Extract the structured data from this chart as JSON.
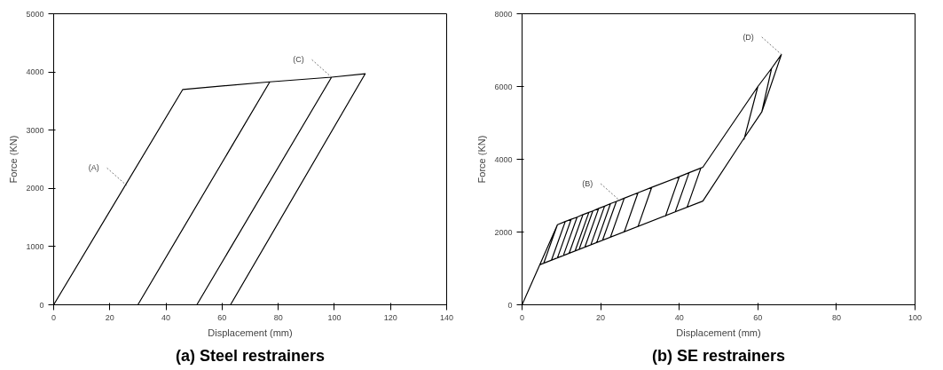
{
  "chart_data": [
    {
      "type": "line",
      "title": "(a) Steel restrainers",
      "xlabel": "Displacement (mm)",
      "ylabel": "Force (KN)",
      "xlim": [
        0,
        140
      ],
      "xticks": [
        0,
        20,
        40,
        60,
        80,
        100,
        120,
        140
      ],
      "ylim": [
        0,
        5000
      ],
      "yticks": [
        0,
        1000,
        2000,
        3000,
        4000,
        5000
      ],
      "grid": false,
      "marker": "none",
      "line_style": "solid",
      "series": [
        {
          "color": "#000000",
          "x": [
            0,
            46,
            77,
            30,
            77,
            99,
            51,
            99,
            111,
            63
          ],
          "values": [
            0,
            3700,
            3830,
            0,
            3830,
            3910,
            0,
            3910,
            3970,
            0
          ]
        }
      ],
      "annotations": [
        {
          "text": "(A)",
          "x": 26,
          "y": 2050
        },
        {
          "text": "(C)",
          "x": 99,
          "y": 3910
        }
      ]
    },
    {
      "type": "line",
      "title": "(b) SE restrainers",
      "xlabel": "Displacement (mm)",
      "ylabel": "Force (KN)",
      "xlim": [
        0,
        100
      ],
      "xticks": [
        0,
        20,
        40,
        60,
        80,
        100
      ],
      "ylim": [
        0,
        8000
      ],
      "yticks": [
        0,
        2000,
        4000,
        6000,
        8000
      ],
      "grid": false,
      "marker": "none",
      "line_style": "solid",
      "series": [
        {
          "color": "#000000",
          "x": [
            0,
            4.5,
            9,
            5.5,
            9,
            11,
            7.5,
            11,
            12.5,
            9,
            12.5,
            14,
            10.5,
            14,
            15.5,
            12,
            15.5,
            17,
            13.5,
            17,
            18,
            14.5,
            18,
            19.5,
            16,
            19.5,
            21,
            17.5,
            21,
            22.5,
            19,
            22.5,
            24,
            20.5,
            24,
            26,
            22.5,
            26,
            29.5,
            26,
            29.5,
            33,
            29.5,
            33,
            40,
            36.5,
            40,
            42.5,
            39,
            42.5,
            45.5,
            42,
            45.5,
            46,
            60,
            56.5,
            60,
            63.5,
            61,
            63.5,
            66,
            61,
            56,
            46,
            4.5
          ],
          "values": [
            0,
            1100,
            2200,
            1140,
            2200,
            2290,
            1230,
            2290,
            2350,
            1290,
            2350,
            2410,
            1350,
            2410,
            2480,
            1420,
            2480,
            2540,
            1480,
            2540,
            2580,
            1520,
            2580,
            2650,
            1590,
            2650,
            2710,
            1650,
            2710,
            2780,
            1710,
            2780,
            2840,
            1780,
            2840,
            2930,
            1860,
            2930,
            3080,
            2000,
            3080,
            3230,
            2150,
            3230,
            3520,
            2440,
            3520,
            3630,
            2560,
            3630,
            3760,
            2680,
            3760,
            3780,
            6000,
            4550,
            6000,
            6500,
            5300,
            6500,
            6880,
            5300,
            4500,
            2850,
            1100
          ]
        }
      ],
      "annotations": [
        {
          "text": "(B)",
          "x": 25,
          "y": 2850
        },
        {
          "text": "(D)",
          "x": 66,
          "y": 6880
        }
      ]
    }
  ]
}
